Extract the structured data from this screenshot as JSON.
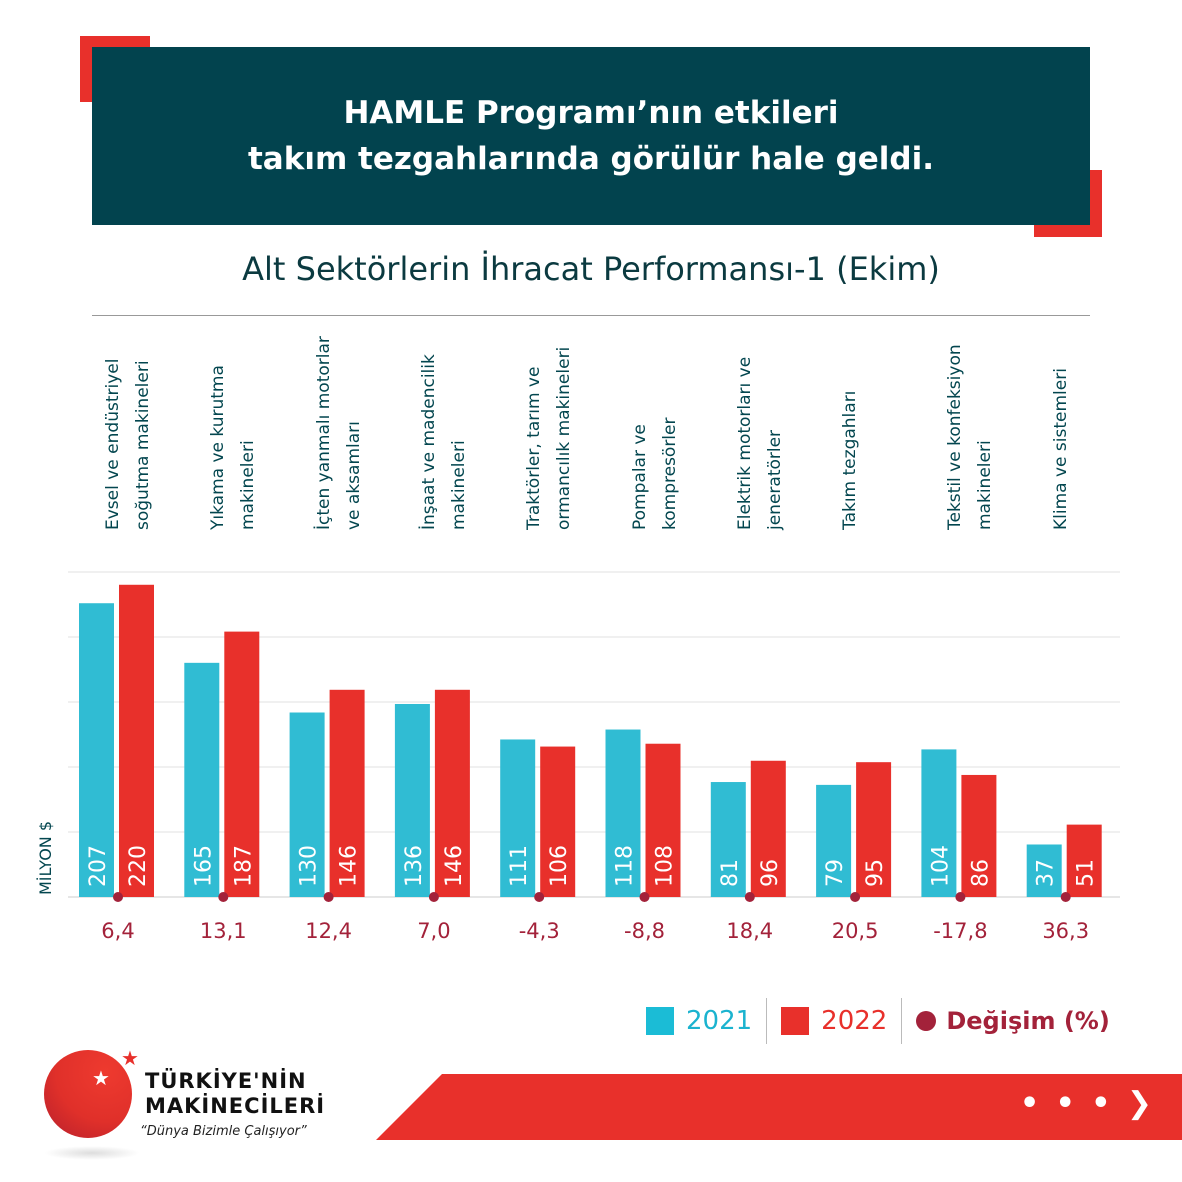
{
  "header": {
    "line1": "HAMLE Programı’nın etkileri",
    "line2": "takım tezgahlarında görülür hale geldi."
  },
  "colors": {
    "2021": "#30bcd3",
    "2022": "#e8302b",
    "change": "#a3223a",
    "header_bg": "#02434e"
  },
  "chart_data": {
    "type": "bar",
    "title": "Alt Sektörlerin İhracat Performansı-1 (Ekim)",
    "ylabel": "MİLYON $",
    "ylim": [
      0,
      229
    ],
    "grid": true,
    "legend_position": "bottom-right",
    "categories": [
      "Evsel ve endüstriyel\nsoğutma makineleri",
      "Yıkama ve kurutma\nmakineleri",
      "İçten yanmalı motorlar\nve aksamları",
      "İnşaat ve madencilik\nmakineleri",
      "Traktörler, tarım ve\normancılık makineleri",
      "Pompalar ve\nkompresörler",
      "Elektrik motorları ve\njeneratörler",
      "Takım tezgahları",
      "Tekstil ve konfeksiyon\nmakineleri",
      "Klima ve sistemleri"
    ],
    "series": [
      {
        "name": "2021",
        "values": [
          207,
          165,
          130,
          136,
          111,
          118,
          81,
          79,
          104,
          37
        ]
      },
      {
        "name": "2022",
        "values": [
          220,
          187,
          146,
          146,
          106,
          108,
          96,
          95,
          86,
          51
        ]
      }
    ],
    "change_label": "Değişim (%)",
    "change": [
      "6,4",
      "13,1",
      "12,4",
      "7,0",
      "-4,3",
      "-8,8",
      "18,4",
      "20,5",
      "-17,8",
      "36,3"
    ]
  },
  "logo": {
    "line1": "TÜRKİYE'NİN",
    "line2": "MAKİNECİLERİ",
    "slogan": "“Dünya Bizimle Çalışıyor”"
  },
  "footer": {
    "next_icon": "arrow-right-icon",
    "next_label": "• • • ❯"
  }
}
